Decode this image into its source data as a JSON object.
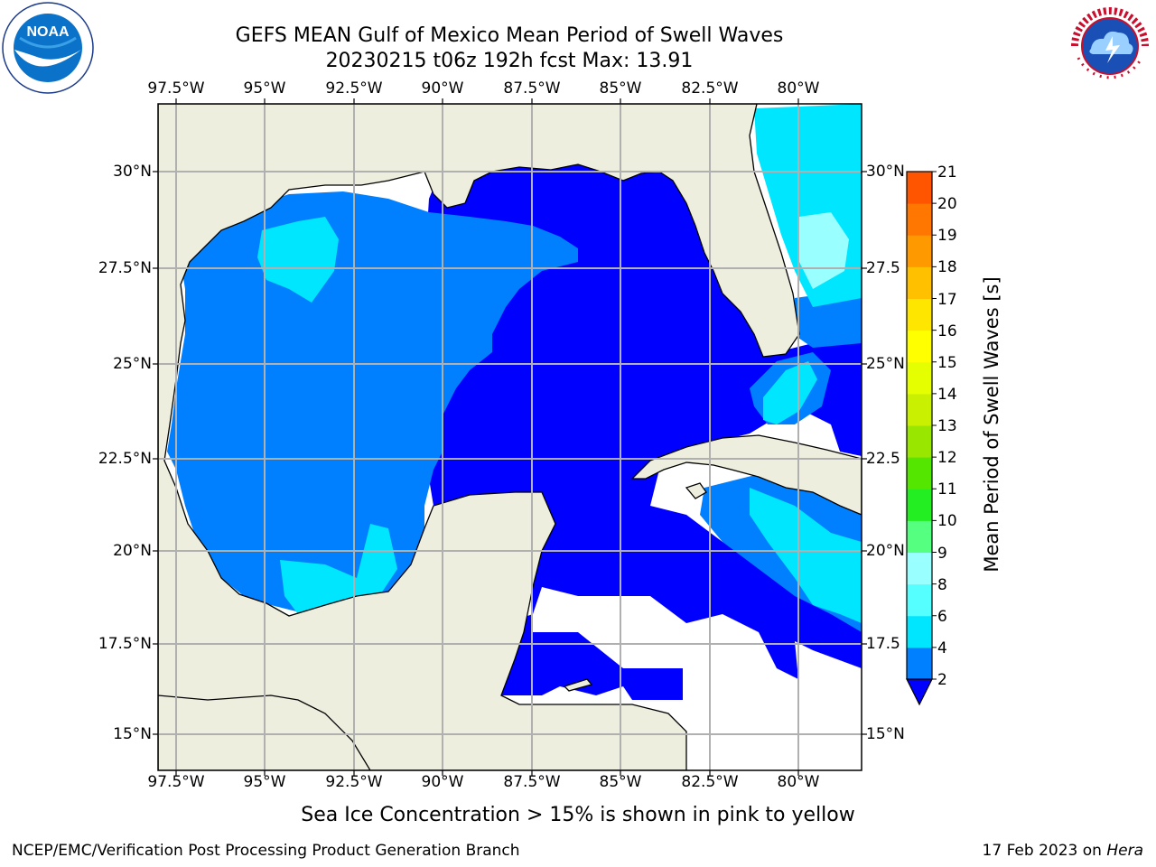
{
  "title_line1": "GEFS MEAN Gulf of Mexico Mean Period of Swell Waves",
  "title_line2": "20230215 t06z 192h fcst   Max: 13.91",
  "logos": {
    "left": "NOAA",
    "right": "NATIONAL WEATHER SERVICE",
    "left_icon": "noaa-logo-icon",
    "right_icon": "nws-logo-icon"
  },
  "map": {
    "lon_range": [
      -98.0,
      -78.2
    ],
    "lat_range": [
      14.0,
      31.8
    ],
    "lon_ticks": [
      "97.5°W",
      "95°W",
      "92.5°W",
      "90°W",
      "87.5°W",
      "85°W",
      "82.5°W",
      "80°W"
    ],
    "lat_ticks_left": [
      "30°N",
      "27.5°N",
      "25°N",
      "22.5°N",
      "20°N",
      "17.5°N",
      "15°N"
    ],
    "lat_ticks_right": [
      "30°N",
      "27.5",
      "25°N",
      "22.5",
      "20°N",
      "17.5",
      "15°N"
    ],
    "land_color": "#eeeede",
    "grid": true
  },
  "colorbar": {
    "title": "Mean Period of Swell Waves [s]",
    "levels": [
      "2",
      "4",
      "6",
      "8",
      "9",
      "10",
      "11",
      "12",
      "13",
      "14",
      "15",
      "16",
      "17",
      "18",
      "19",
      "20",
      "21"
    ],
    "colors": [
      "#0080ff",
      "#00e6ff",
      "#55ffff",
      "#99ffff",
      "#55ff80",
      "#22ee22",
      "#55e600",
      "#99e600",
      "#c8f000",
      "#e6ff00",
      "#ffff00",
      "#ffe600",
      "#ffc000",
      "#ff9900",
      "#ff7700",
      "#ff5500",
      "#ff2200",
      "#ff0000"
    ],
    "under_color": "#0000ff",
    "extend": "min"
  },
  "note": "Sea Ice Concentration > 15% is shown in pink to yellow",
  "footer_left": "NCEP/EMC/Verification Post Processing Product Generation Branch",
  "footer_date": "17 Feb 2023 on ",
  "footer_machine": "Hera"
}
